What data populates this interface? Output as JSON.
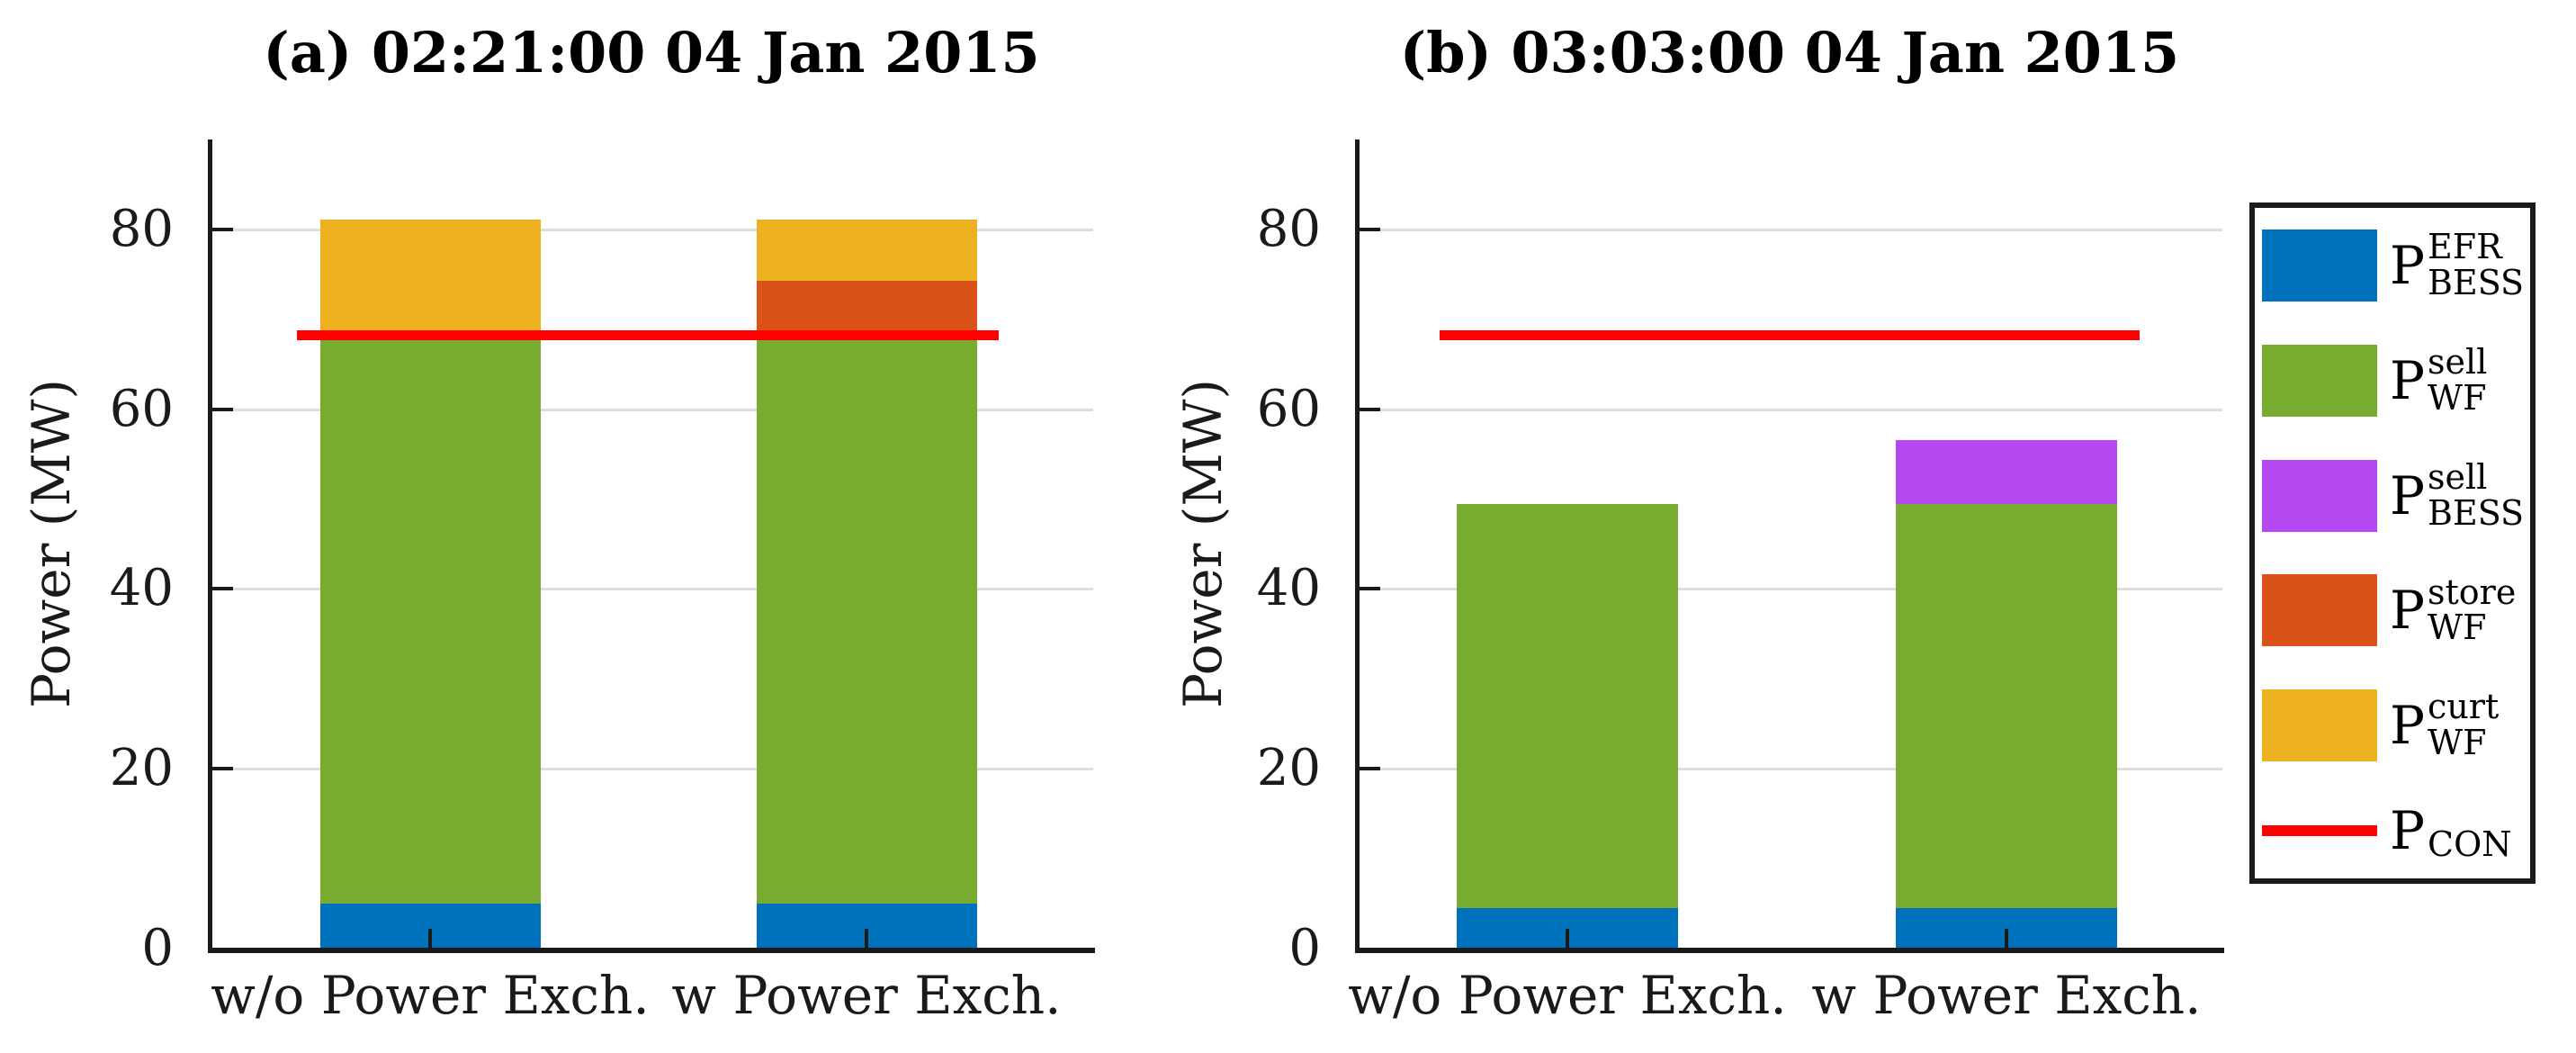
{
  "figure": {
    "background": "#FFFFFF",
    "axis_color": "#1A1A1A",
    "grid_color": "#DEDEDE"
  },
  "legend": {
    "entries": [
      {
        "name": "P_BESS_EFR",
        "type": "patch",
        "color": "#0072BD",
        "base": "P",
        "sup": "EFR",
        "sub": "BESS"
      },
      {
        "name": "P_WF_sell",
        "type": "patch",
        "color": "#77AC30",
        "base": "P",
        "sup": "sell",
        "sub": "WF"
      },
      {
        "name": "P_BESS_sell",
        "type": "patch",
        "color": "#B648F2",
        "base": "P",
        "sup": "sell",
        "sub": "BESS"
      },
      {
        "name": "P_WF_store",
        "type": "patch",
        "color": "#D95319",
        "base": "P",
        "sup": "store",
        "sub": "WF"
      },
      {
        "name": "P_WF_curt",
        "type": "patch",
        "color": "#EDB120",
        "base": "P",
        "sup": "curt",
        "sub": "WF"
      },
      {
        "name": "P_CON",
        "type": "line",
        "color": "#FF0000",
        "base": "P",
        "sup": "",
        "sub": "CON"
      }
    ]
  },
  "chart_data": [
    {
      "type": "bar",
      "stacked": true,
      "title": "(a) 02:21:00 04 Jan 2015",
      "ylabel": "Power (MW)",
      "xlabel": "",
      "categories": [
        "w/o Power Exch.",
        "w Power Exch."
      ],
      "ylim": [
        0,
        90
      ],
      "yticks": [
        0,
        20,
        40,
        60,
        80
      ],
      "grid": "horizontal",
      "legend_position": "right-outside",
      "series": [
        {
          "name": "P_BESS_EFR",
          "color": "#0072BD",
          "values": [
            5.0,
            5.0
          ]
        },
        {
          "name": "P_WF_sell",
          "color": "#77AC30",
          "values": [
            63.3,
            63.3
          ]
        },
        {
          "name": "P_BESS_sell",
          "color": "#B648F2",
          "values": [
            0,
            0
          ]
        },
        {
          "name": "P_WF_store",
          "color": "#D95319",
          "values": [
            0,
            6.0
          ]
        },
        {
          "name": "P_WF_curt",
          "color": "#EDB120",
          "values": [
            12.8,
            6.8
          ]
        }
      ],
      "totals": [
        81.1,
        81.1
      ],
      "ref_line": {
        "name": "P_CON",
        "value": 68.3,
        "color": "#FF0000"
      }
    },
    {
      "type": "bar",
      "stacked": true,
      "title": "(b) 03:03:00 04 Jan 2015",
      "ylabel": "Power (MW)",
      "xlabel": "",
      "categories": [
        "w/o Power Exch.",
        "w Power Exch."
      ],
      "ylim": [
        0,
        90
      ],
      "yticks": [
        0,
        20,
        40,
        60,
        80
      ],
      "grid": "horizontal",
      "legend_position": "right-outside",
      "series": [
        {
          "name": "P_BESS_EFR",
          "color": "#0072BD",
          "values": [
            4.5,
            4.5
          ]
        },
        {
          "name": "P_WF_sell",
          "color": "#77AC30",
          "values": [
            45.0,
            45.0
          ]
        },
        {
          "name": "P_BESS_sell",
          "color": "#B648F2",
          "values": [
            0,
            7.1
          ]
        },
        {
          "name": "P_WF_store",
          "color": "#D95319",
          "values": [
            0,
            0
          ]
        },
        {
          "name": "P_WF_curt",
          "color": "#EDB120",
          "values": [
            0,
            0
          ]
        }
      ],
      "totals": [
        49.5,
        56.6
      ],
      "ref_line": {
        "name": "P_CON",
        "value": 68.3,
        "color": "#FF0000"
      }
    }
  ]
}
